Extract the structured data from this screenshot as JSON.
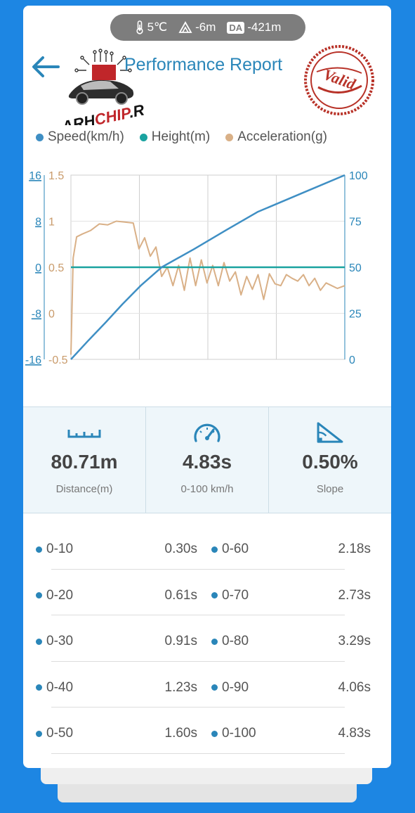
{
  "header": {
    "temperature": "5℃",
    "altitude": "-6m",
    "da_label": "DA",
    "density_altitude": "-421m",
    "title": "Performance Report",
    "stamp_text": "Valid",
    "watermark": "ARHCHIP.RU"
  },
  "legend": {
    "speed": "Speed(km/h)",
    "height": "Height(m)",
    "acceleration": "Acceleration(g)"
  },
  "colors": {
    "speed": "#3f8fc4",
    "height": "#1aa3a0",
    "acceleration": "#d9b087",
    "accent": "#2a86b9",
    "background": "#1d86e3",
    "stamp": "#b83228"
  },
  "chart_data": {
    "type": "line",
    "xlabel": "",
    "ylim_speed": [
      0,
      100
    ],
    "ylim_height": [
      -16,
      16
    ],
    "ylim_acceleration": [
      -0.5,
      1.5
    ],
    "height_ticks": [
      "16",
      "8",
      "0",
      "-8",
      "-16"
    ],
    "acceleration_ticks": [
      "1.5",
      "1",
      "0.5",
      "0",
      "-0.5"
    ],
    "speed_ticks": [
      "100",
      "75",
      "50",
      "25",
      "0"
    ],
    "series": [
      {
        "name": "Speed(km/h)",
        "axis": "right",
        "x": [
          0,
          0.3,
          0.61,
          0.91,
          1.23,
          1.6,
          2.18,
          2.73,
          3.29,
          4.06,
          4.83
        ],
        "values": [
          0,
          10,
          20,
          30,
          40,
          50,
          60,
          70,
          80,
          90,
          100
        ]
      },
      {
        "name": "Height(m)",
        "axis": "left-outer",
        "x": [
          0,
          4.83
        ],
        "values": [
          0,
          0
        ]
      },
      {
        "name": "Acceleration(g)",
        "axis": "left-inner",
        "x": [
          0,
          0.04,
          0.1,
          0.2,
          0.35,
          0.5,
          0.65,
          0.8,
          0.95,
          1.1,
          1.2,
          1.3,
          1.4,
          1.5,
          1.6,
          1.7,
          1.8,
          1.9,
          2.0,
          2.1,
          2.2,
          2.3,
          2.4,
          2.5,
          2.6,
          2.7,
          2.8,
          2.9,
          3.0,
          3.1,
          3.2,
          3.3,
          3.4,
          3.5,
          3.6,
          3.7,
          3.8,
          3.9,
          4.0,
          4.1,
          4.2,
          4.3,
          4.4,
          4.5,
          4.6,
          4.7,
          4.83
        ],
        "values": [
          -0.45,
          0.6,
          0.83,
          0.86,
          0.9,
          0.97,
          0.96,
          1.0,
          0.99,
          0.98,
          0.7,
          0.82,
          0.62,
          0.72,
          0.4,
          0.5,
          0.3,
          0.52,
          0.25,
          0.6,
          0.3,
          0.58,
          0.33,
          0.52,
          0.3,
          0.55,
          0.35,
          0.45,
          0.2,
          0.4,
          0.26,
          0.42,
          0.15,
          0.43,
          0.32,
          0.3,
          0.42,
          0.38,
          0.35,
          0.42,
          0.3,
          0.38,
          0.25,
          0.33,
          0.3,
          0.27,
          0.3
        ]
      }
    ]
  },
  "stats": [
    {
      "value": "80.71m",
      "label": "Distance(m)",
      "icon": "ruler-icon"
    },
    {
      "value": "4.83s",
      "label": "0-100 km/h",
      "icon": "speedometer-icon"
    },
    {
      "value": "0.50%",
      "label": "Slope",
      "icon": "slope-icon"
    }
  ],
  "splits": [
    {
      "range_a": "0-10",
      "time_a": "0.30s",
      "range_b": "0-60",
      "time_b": "2.18s"
    },
    {
      "range_a": "0-20",
      "time_a": "0.61s",
      "range_b": "0-70",
      "time_b": "2.73s"
    },
    {
      "range_a": "0-30",
      "time_a": "0.91s",
      "range_b": "0-80",
      "time_b": "3.29s"
    },
    {
      "range_a": "0-40",
      "time_a": "1.23s",
      "range_b": "0-90",
      "time_b": "4.06s"
    },
    {
      "range_a": "0-50",
      "time_a": "1.60s",
      "range_b": "0-100",
      "time_b": "4.83s"
    }
  ]
}
